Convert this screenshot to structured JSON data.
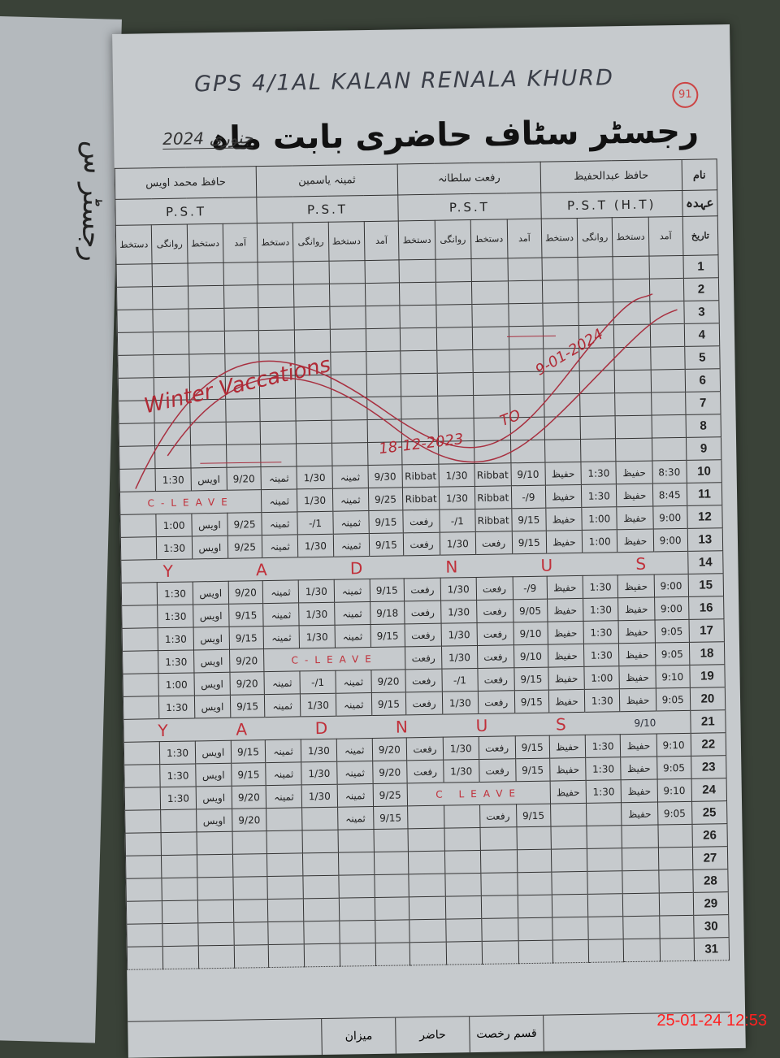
{
  "left_page": {
    "title": "رجسٹر س"
  },
  "header": {
    "school": "GPS 4/1AL KALAN RENALA KHURD",
    "page_number": "91",
    "title": "رجسٹر سٹاف حاضری بابت ماہ",
    "month": "جنوری 2024"
  },
  "labels": {
    "name": "نام",
    "designation": "عہدہ",
    "date": "تاریخ"
  },
  "column_headers": [
    "آمد",
    "دستخط",
    "روانگی",
    "دستخط"
  ],
  "staff": [
    {
      "name": "حافظ عبدالحفیظ",
      "designation": "P.S.T (H.T)"
    },
    {
      "name": "رفعت سلطانہ",
      "designation": "P.S.T"
    },
    {
      "name": "ثمینہ یاسمین",
      "designation": "P.S.T"
    },
    {
      "name": "حافظ محمد اویس",
      "designation": "P.S.T"
    }
  ],
  "vacation": {
    "label": "Winter Vaccations",
    "from": "18-12-2023",
    "to_word": "TO",
    "to": "9-01-2024"
  },
  "sunday_letters": [
    "S",
    "U",
    "N",
    "D",
    "A",
    "Y"
  ],
  "rows": [
    {
      "date": "1"
    },
    {
      "date": "2"
    },
    {
      "date": "3"
    },
    {
      "date": "4"
    },
    {
      "date": "5"
    },
    {
      "date": "6"
    },
    {
      "date": "7"
    },
    {
      "date": "8"
    },
    {
      "date": "9"
    },
    {
      "date": "10",
      "staff": [
        [
          "8:30",
          "حفیظ",
          "1:30",
          "حفیظ"
        ],
        [
          "9/10",
          "Ribbat",
          "1/30",
          "Ribbat"
        ],
        [
          "9/30",
          "ثمینہ",
          "1/30",
          "ثمینہ"
        ],
        [
          "9/20",
          "اویس",
          "1:30",
          ""
        ]
      ]
    },
    {
      "date": "11",
      "staff": [
        [
          "8:45",
          "حفیظ",
          "1:30",
          "حفیظ"
        ],
        [
          "9/-",
          "Ribbat",
          "1/30",
          "Ribbat"
        ],
        [
          "9/25",
          "ثمینہ",
          "1/30",
          "ثمینہ"
        ],
        "C-LEAVE"
      ]
    },
    {
      "date": "12",
      "staff": [
        [
          "9:00",
          "حفیظ",
          "1:00",
          "حفیظ"
        ],
        [
          "9/15",
          "Ribbat",
          "1/-",
          "رفعت"
        ],
        [
          "9/15",
          "ثمینہ",
          "1/-",
          "ثمینہ"
        ],
        [
          "9/25",
          "اویس",
          "1:00",
          ""
        ]
      ]
    },
    {
      "date": "13",
      "staff": [
        [
          "9:00",
          "حفیظ",
          "1:00",
          "حفیظ"
        ],
        [
          "9/15",
          "رفعت",
          "1/30",
          "رفعت"
        ],
        [
          "9/15",
          "ثمینہ",
          "1/30",
          "ثمینہ"
        ],
        [
          "9/25",
          "اویس",
          "1:30",
          ""
        ]
      ]
    },
    {
      "date": "14",
      "sunday": true
    },
    {
      "date": "15",
      "staff": [
        [
          "9:00",
          "حفیظ",
          "1:30",
          "حفیظ"
        ],
        [
          "9/-",
          "رفعت",
          "1/30",
          "رفعت"
        ],
        [
          "9/15",
          "ثمینہ",
          "1/30",
          "ثمینہ"
        ],
        [
          "9/20",
          "اویس",
          "1:30",
          ""
        ]
      ]
    },
    {
      "date": "16",
      "staff": [
        [
          "9:00",
          "حفیظ",
          "1:30",
          "حفیظ"
        ],
        [
          "9/05",
          "رفعت",
          "1/30",
          "رفعت"
        ],
        [
          "9/18",
          "ثمینہ",
          "1/30",
          "ثمینہ"
        ],
        [
          "9/15",
          "اویس",
          "1:30",
          ""
        ]
      ]
    },
    {
      "date": "17",
      "staff": [
        [
          "9:05",
          "حفیظ",
          "1:30",
          "حفیظ"
        ],
        [
          "9/10",
          "رفعت",
          "1/30",
          "رفعت"
        ],
        [
          "9/15",
          "ثمینہ",
          "1/30",
          "ثمینہ"
        ],
        [
          "9/15",
          "اویس",
          "1:30",
          ""
        ]
      ]
    },
    {
      "date": "18",
      "staff": [
        [
          "9:05",
          "حفیظ",
          "1:30",
          "حفیظ"
        ],
        [
          "9/10",
          "رفعت",
          "1/30",
          "رفعت"
        ],
        "C-LEAVE",
        [
          "9/20",
          "اویس",
          "1:30",
          ""
        ]
      ]
    },
    {
      "date": "19",
      "staff": [
        [
          "9:10",
          "حفیظ",
          "1:00",
          "حفیظ"
        ],
        [
          "9/15",
          "رفعت",
          "1/-",
          "رفعت"
        ],
        [
          "9/20",
          "ثمینہ",
          "1/-",
          "ثمینہ"
        ],
        [
          "9/20",
          "اویس",
          "1:00",
          ""
        ]
      ]
    },
    {
      "date": "20",
      "staff": [
        [
          "9:05",
          "حفیظ",
          "1:30",
          "حفیظ"
        ],
        [
          "9/15",
          "رفعت",
          "1/30",
          "رفعت"
        ],
        [
          "9/15",
          "ثمینہ",
          "1/30",
          "ثمینہ"
        ],
        [
          "9/15",
          "اویس",
          "1:30",
          ""
        ]
      ]
    },
    {
      "date": "21",
      "sunday": true,
      "note": "9/10"
    },
    {
      "date": "22",
      "staff": [
        [
          "9:10",
          "حفیظ",
          "1:30",
          "حفیظ"
        ],
        [
          "9/15",
          "رفعت",
          "1/30",
          "رفعت"
        ],
        [
          "9/20",
          "ثمینہ",
          "1/30",
          "ثمینہ"
        ],
        [
          "9/15",
          "اویس",
          "1:30",
          ""
        ]
      ]
    },
    {
      "date": "23",
      "staff": [
        [
          "9:05",
          "حفیظ",
          "1:30",
          "حفیظ"
        ],
        [
          "9/15",
          "رفعت",
          "1/30",
          "رفعت"
        ],
        [
          "9/20",
          "ثمینہ",
          "1/30",
          "ثمینہ"
        ],
        [
          "9/15",
          "اویس",
          "1:30",
          ""
        ]
      ]
    },
    {
      "date": "24",
      "staff": [
        [
          "9:10",
          "حفیظ",
          "1:30",
          "حفیظ"
        ],
        "C LEAVE",
        [
          "9/25",
          "ثمینہ",
          "1/30",
          "ثمینہ"
        ],
        [
          "9/20",
          "اویس",
          "1:30",
          ""
        ]
      ]
    },
    {
      "date": "25",
      "staff": [
        [
          "9:05",
          "حفیظ",
          "",
          ""
        ],
        [
          "9/15",
          "رفعت",
          "",
          ""
        ],
        [
          "9/15",
          "ثمینہ",
          "",
          ""
        ],
        [
          "9/20",
          "اویس",
          "",
          ""
        ]
      ]
    },
    {
      "date": "26"
    },
    {
      "date": "27"
    },
    {
      "date": "28"
    },
    {
      "date": "29"
    },
    {
      "date": "30"
    },
    {
      "date": "31"
    }
  ],
  "footer": {
    "labels": [
      "قسم رخصت",
      "حاضر",
      "میزان"
    ]
  },
  "timestamp": "25-01-24 12:53",
  "colors": {
    "ink": "#2a2e3a",
    "red_ink": "#c0303a",
    "paper": "#c6cacd",
    "stamp": "#ff2020"
  }
}
